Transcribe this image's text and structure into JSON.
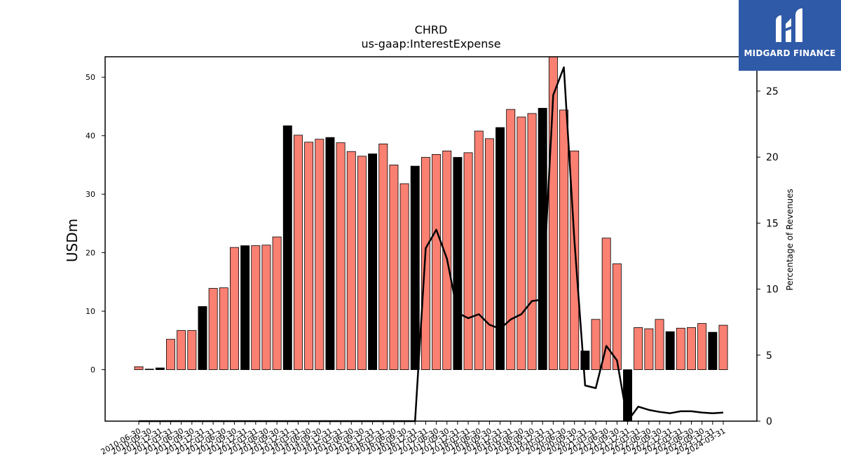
{
  "brand": {
    "name": "MIDGARD FINANCE",
    "logo_icon": "midgard-logo-icon",
    "background_color": "#2f5aa8"
  },
  "chart_data": {
    "type": "bar",
    "title": "CHRD",
    "subtitle": "us-gaap:InterestExpense",
    "ylabel": "USDm",
    "y2label": "Percentage of Revenues",
    "ylim": [
      -8.8,
      53.5
    ],
    "y2lim": [
      0,
      27.6
    ],
    "yticks": [
      0,
      10,
      20,
      30,
      40,
      50
    ],
    "y2ticks": [
      0,
      5,
      10,
      15,
      20,
      25
    ],
    "colors": {
      "bar_default": "#fa8072",
      "bar_highlight": "#000000",
      "line": "#000000"
    },
    "categories": [
      "2010-06-30",
      "2010-09-30",
      "2010-12-31",
      "2011-03-31",
      "2011-06-30",
      "2011-09-30",
      "2011-12-31",
      "2012-03-31",
      "2012-06-30",
      "2012-09-30",
      "2012-12-31",
      "2013-03-31",
      "2013-06-30",
      "2013-09-30",
      "2013-12-31",
      "2014-03-31",
      "2014-06-30",
      "2014-09-30",
      "2014-12-31",
      "2015-03-31",
      "2015-06-30",
      "2015-09-30",
      "2015-12-31",
      "2016-03-31",
      "2016-06-30",
      "2016-09-30",
      "2016-12-31",
      "2017-03-31",
      "2017-06-30",
      "2017-09-30",
      "2017-12-31",
      "2018-03-31",
      "2018-06-30",
      "2018-09-30",
      "2018-12-31",
      "2019-03-31",
      "2019-06-30",
      "2019-09-30",
      "2019-12-31",
      "2020-03-31",
      "2020-06-30",
      "2020-09-30",
      "2020-12-31",
      "2021-03-31",
      "2021-06-30",
      "2021-09-30",
      "2021-12-31",
      "2022-03-31",
      "2022-06-30",
      "2022-09-30",
      "2022-12-31",
      "2023-03-31",
      "2023-06-30",
      "2023-09-30",
      "2023-12-31",
      "2024-03-31"
    ],
    "series": [
      {
        "type": "bar",
        "axis": "left",
        "values": [
          0.5,
          0.1,
          0.3,
          5.2,
          6.7,
          6.7,
          10.8,
          13.9,
          14.0,
          20.9,
          21.2,
          21.2,
          21.3,
          22.7,
          41.7,
          40.1,
          38.9,
          39.4,
          39.7,
          38.8,
          37.3,
          36.5,
          36.9,
          38.6,
          35.0,
          31.8,
          34.8,
          36.3,
          36.8,
          37.4,
          36.3,
          37.1,
          40.8,
          39.5,
          41.4,
          44.5,
          43.2,
          43.8,
          44.7,
          53.7,
          44.4,
          37.4,
          3.2,
          8.6,
          22.5,
          18.1,
          -8.8,
          7.2,
          7.0,
          8.6,
          6.5,
          7.1,
          7.2,
          7.9,
          6.4,
          7.6
        ],
        "highlight": [
          false,
          true,
          true,
          false,
          false,
          false,
          true,
          false,
          false,
          false,
          true,
          false,
          false,
          false,
          true,
          false,
          false,
          false,
          true,
          false,
          false,
          false,
          true,
          false,
          false,
          false,
          true,
          false,
          false,
          false,
          true,
          false,
          false,
          false,
          true,
          false,
          false,
          false,
          true,
          false,
          false,
          false,
          true,
          false,
          false,
          false,
          true,
          false,
          false,
          false,
          true,
          false,
          false,
          false,
          true,
          false
        ]
      },
      {
        "type": "line",
        "axis": "right",
        "values": [
          0,
          0,
          0,
          0,
          0,
          0,
          0,
          0,
          0,
          0,
          0,
          0,
          0,
          0,
          0,
          0,
          0,
          0,
          0,
          0,
          0,
          0,
          0,
          0,
          0,
          0,
          0,
          13.1,
          14.5,
          12.3,
          8.2,
          7.8,
          8.1,
          7.3,
          7.0,
          7.7,
          8.1,
          9.1,
          9.2,
          24.7,
          26.8,
          13.6,
          2.7,
          2.5,
          5.7,
          4.6,
          0,
          1.1,
          0.85,
          0.7,
          0.6,
          0.75,
          0.75,
          0.65,
          0.6,
          0.65
        ]
      }
    ],
    "grid": false
  }
}
